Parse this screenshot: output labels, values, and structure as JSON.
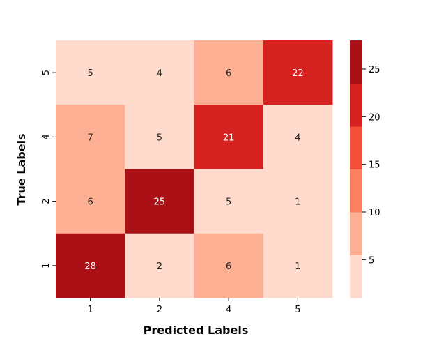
{
  "chart_data": {
    "type": "heatmap",
    "title": "",
    "xlabel": "Predicted Labels",
    "ylabel": "True Labels",
    "x_categories": [
      "1",
      "2",
      "4",
      "5"
    ],
    "y_categories": [
      "5",
      "4",
      "2",
      "1"
    ],
    "values": [
      [
        5,
        4,
        6,
        22
      ],
      [
        7,
        5,
        21,
        4
      ],
      [
        6,
        25,
        5,
        1
      ],
      [
        28,
        2,
        6,
        1
      ]
    ],
    "colorbar": {
      "range": [
        1,
        28
      ],
      "ticks": [
        "5",
        "10",
        "15",
        "20",
        "25"
      ],
      "tick_values": [
        5,
        10,
        15,
        20,
        25
      ],
      "bins": [
        {
          "from": 1,
          "to": 5.5,
          "color": "#fedbcc"
        },
        {
          "from": 5.5,
          "to": 10,
          "color": "#fcaf93"
        },
        {
          "from": 10,
          "to": 14.5,
          "color": "#fc8161"
        },
        {
          "from": 14.5,
          "to": 19,
          "color": "#f44f39"
        },
        {
          "from": 19,
          "to": 23.5,
          "color": "#d52221"
        },
        {
          "from": 23.5,
          "to": 28,
          "color": "#aa1016"
        }
      ]
    },
    "colormap": "Reds",
    "annotation_colors": {
      "light": "#ffffff",
      "dark": "#262626"
    }
  }
}
